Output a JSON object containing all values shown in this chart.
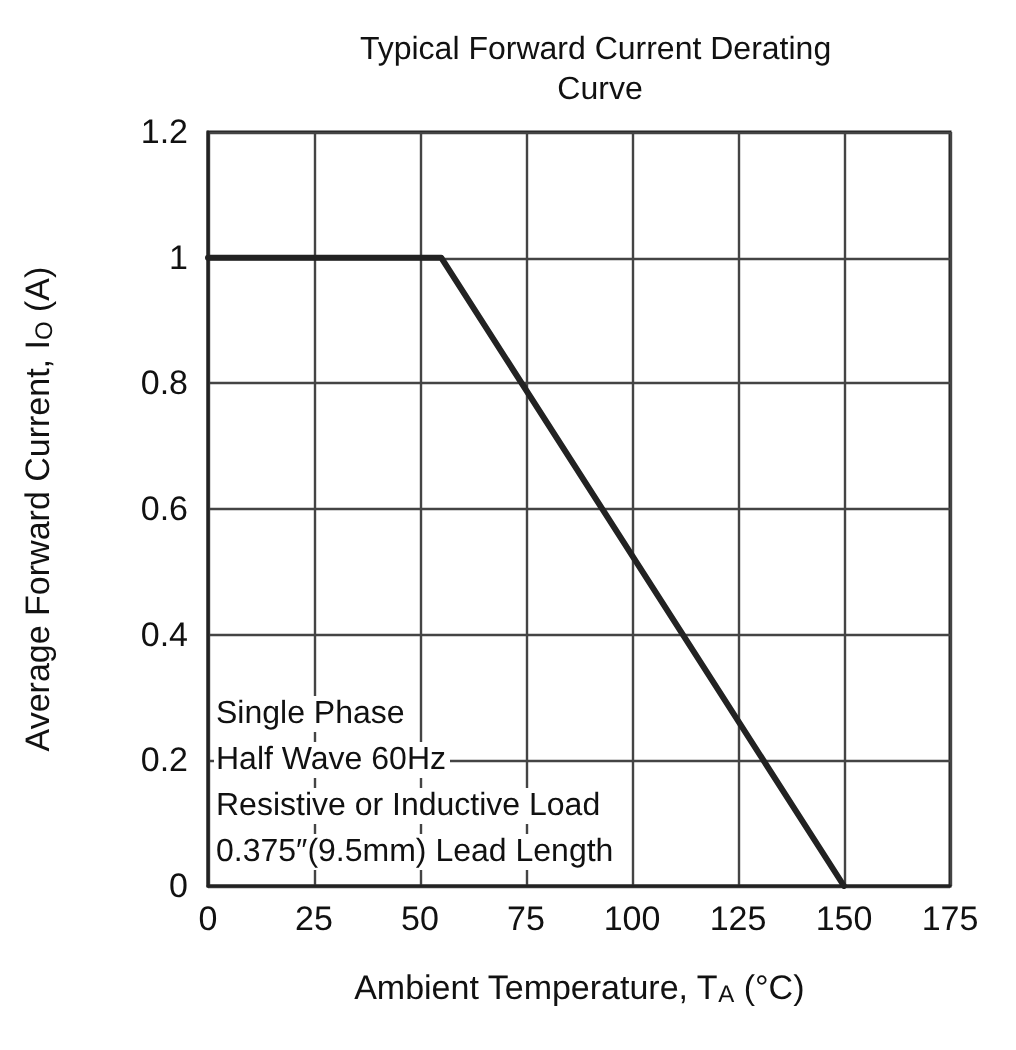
{
  "chart_data": {
    "type": "line",
    "title": "Typical Forward Current Derating Curve",
    "xlabel": "Ambient Temperature, T$_{A}$ (°C)",
    "ylabel": "Average Forward Current, I$_{O}$ (A)",
    "x": [
      0,
      55,
      150
    ],
    "values": [
      1,
      1,
      0
    ],
    "color": "#222222",
    "xlim": [
      0,
      175
    ],
    "xticks": [
      0,
      25,
      50,
      75,
      100,
      125,
      150,
      175
    ],
    "ylim": [
      0,
      1.2
    ],
    "yticks": [
      0,
      0.2,
      0.4,
      0.6,
      0.8,
      1,
      1.2
    ],
    "grid": true,
    "marker": "none",
    "line_style": "solid",
    "annotations": [
      "Single Phase",
      "Half Wave 60Hz",
      "Resistive or Inductive Load",
      "0.375″(9.5mm) Lead Length"
    ]
  }
}
